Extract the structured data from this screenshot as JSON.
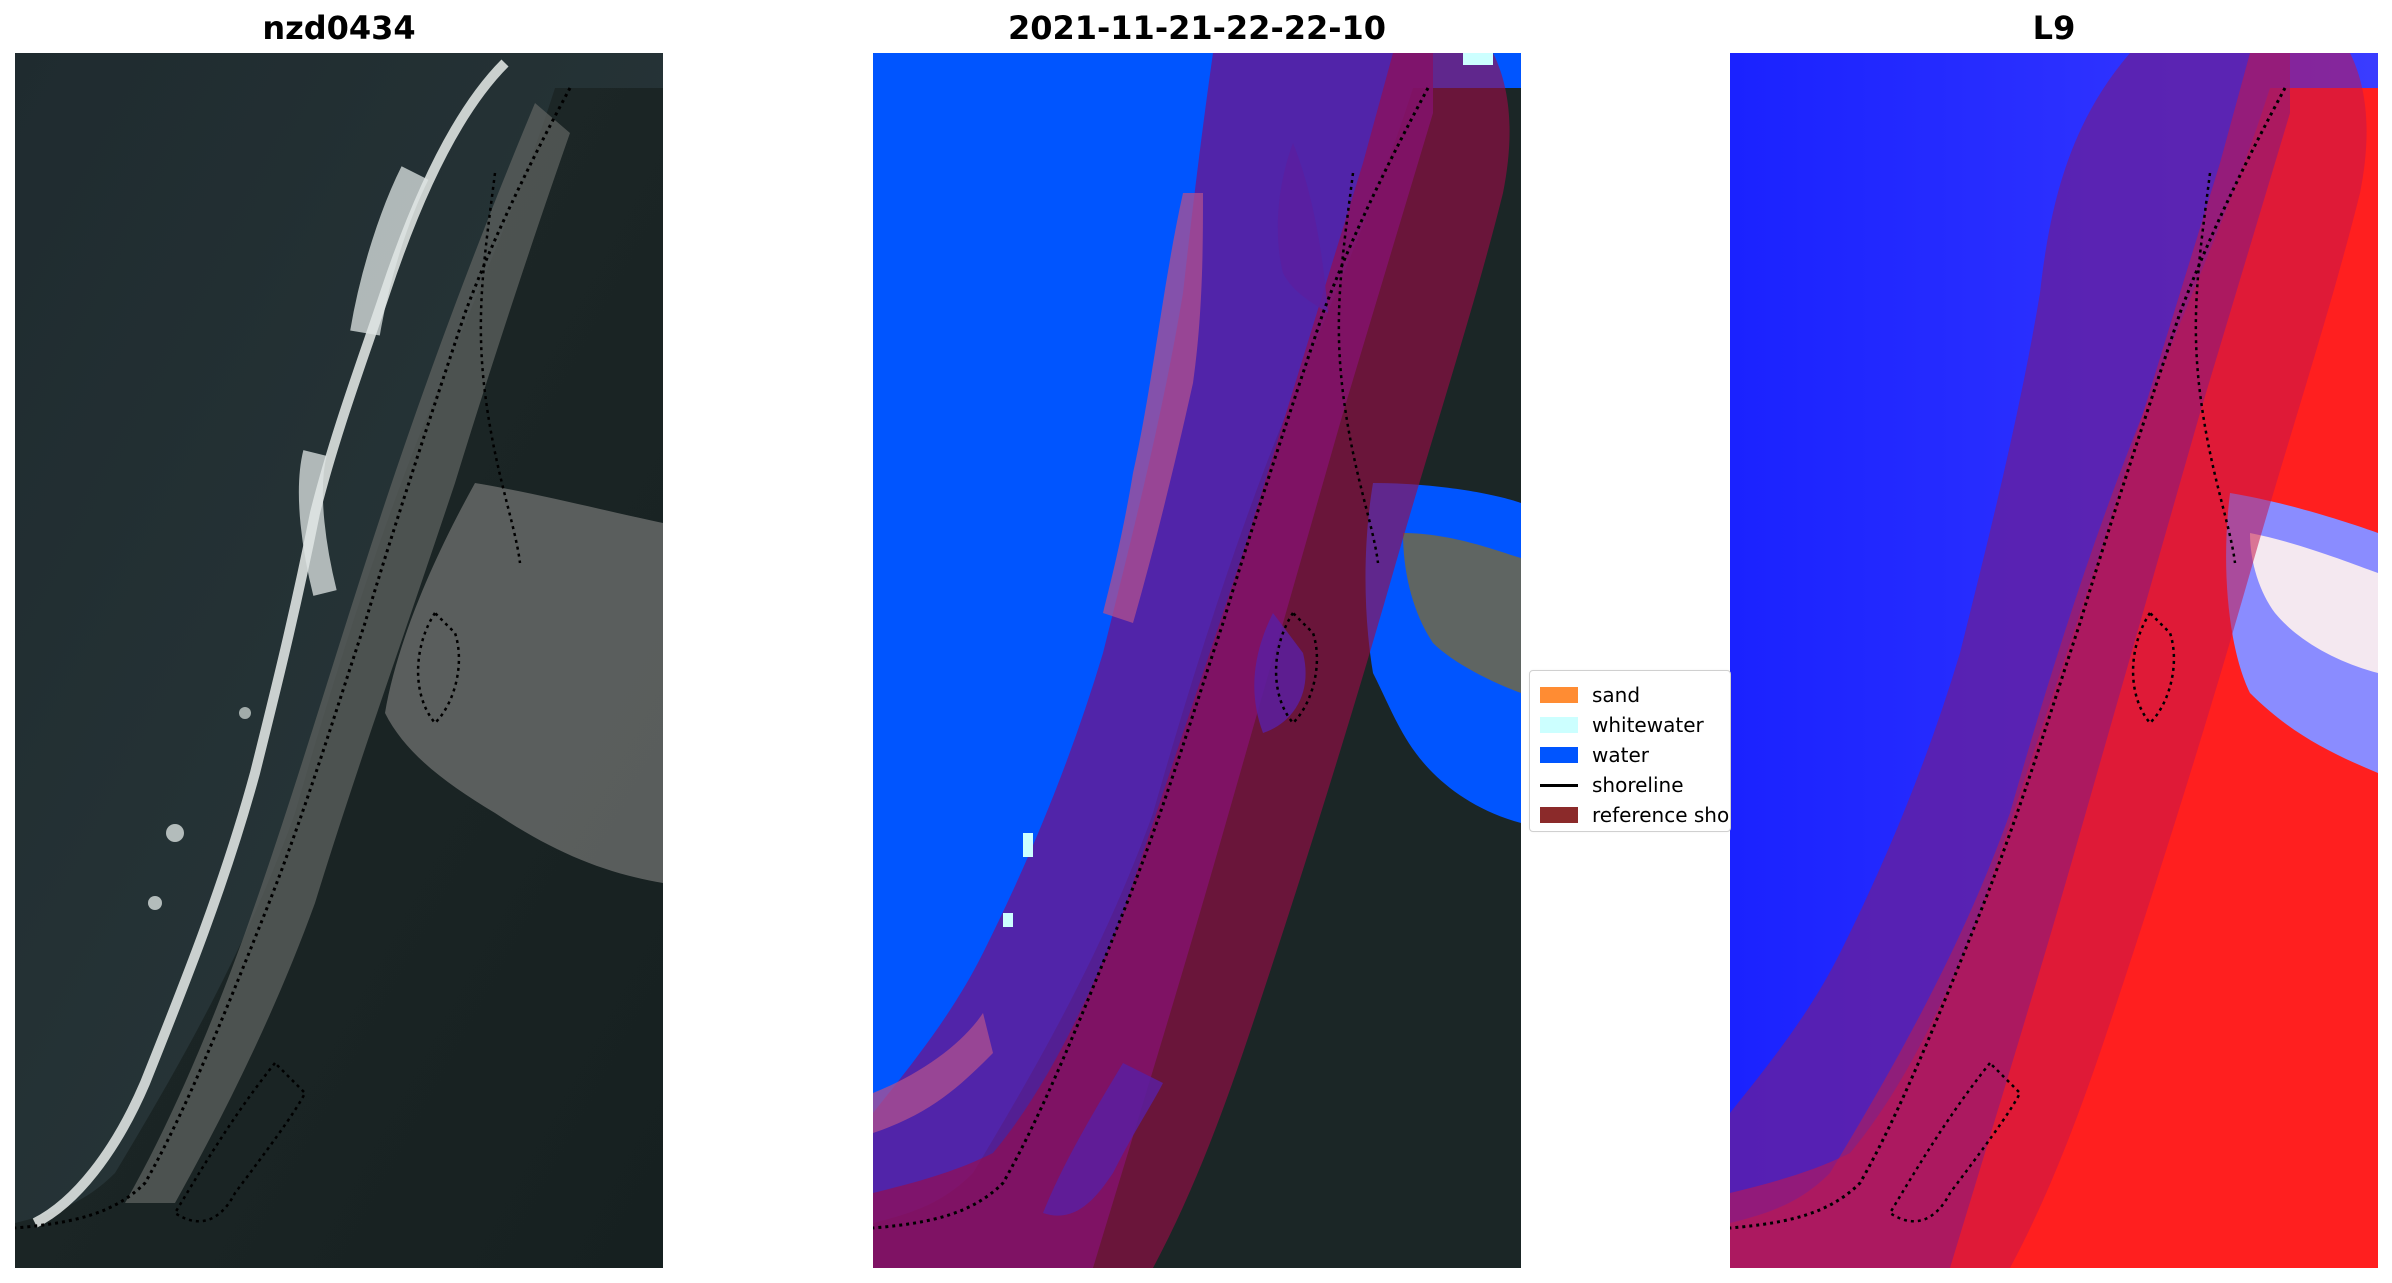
{
  "panels": [
    {
      "title": "nzd0434",
      "kind": "rgb satellite image"
    },
    {
      "title": "2021-11-21-22-22-10",
      "kind": "classification overlay"
    },
    {
      "title": "L9",
      "kind": "index image"
    }
  ],
  "legend": {
    "items": [
      {
        "label": "sand",
        "color": "#ff8c33",
        "type": "patch"
      },
      {
        "label": "whitewater",
        "color": "#ccffff",
        "type": "patch"
      },
      {
        "label": "water",
        "color": "#0055ff",
        "type": "patch"
      },
      {
        "label": "shoreline",
        "color": "#000000",
        "type": "line"
      },
      {
        "label": "reference shoreline buffer",
        "color": "#8b2a2a",
        "type": "patch"
      }
    ]
  },
  "colors": {
    "ocean": "#1f2a2e",
    "land_dark": "#1a2424",
    "river_grey": "#6c6f6e",
    "water_class": "#0055ff",
    "buffer_overlay": "#9b0c47",
    "purple_zone": "#5a1fa0",
    "index_blue": "#1a1aff",
    "index_red": "#ff1a1a"
  }
}
